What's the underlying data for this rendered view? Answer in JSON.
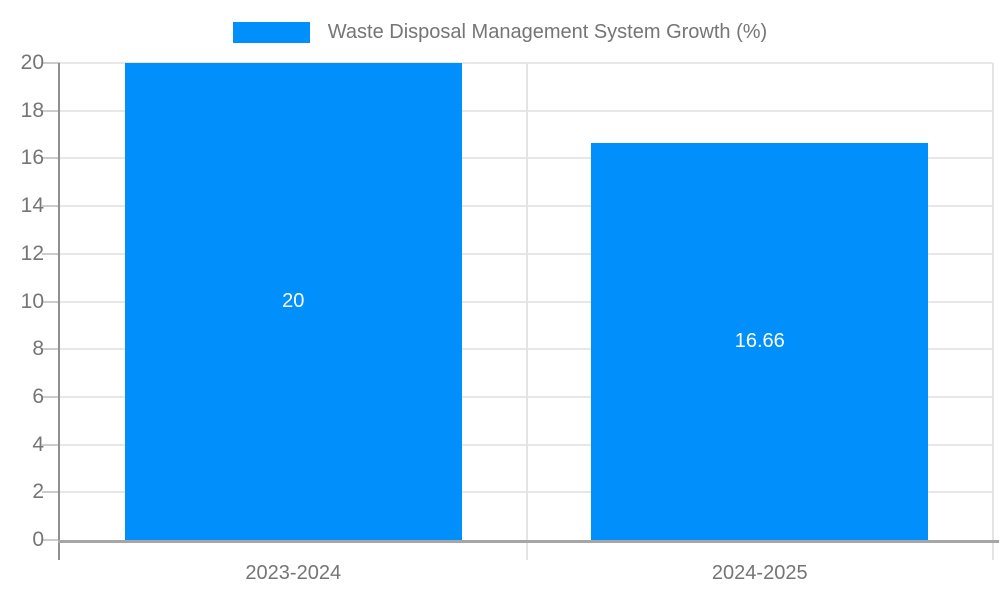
{
  "chart_data": {
    "type": "bar",
    "title": "Waste Disposal Management System Growth (%)",
    "legend": {
      "label": "Waste Disposal Management System Growth (%)",
      "position": "top-center",
      "marker": "rect"
    },
    "categories": [
      "2023-2024",
      "2024-2025"
    ],
    "series": [
      {
        "name": "Waste Disposal Management System Growth (%)",
        "values": [
          20,
          16.66
        ]
      }
    ],
    "bar_value_labels": [
      "20",
      "16.66"
    ],
    "xlabel": "",
    "ylabel": "",
    "ylim": [
      0,
      20
    ],
    "yticks": [
      0,
      2,
      4,
      6,
      8,
      10,
      12,
      14,
      16,
      18,
      20
    ],
    "grid": true,
    "colors": {
      "bar": "#008FFB",
      "axis": "#8f8f8f",
      "gridline": "#e7e7e7",
      "tick": "#cccccc",
      "axis_label": "#757575",
      "value_label": "#ffffff",
      "background": "#ffffff"
    }
  }
}
